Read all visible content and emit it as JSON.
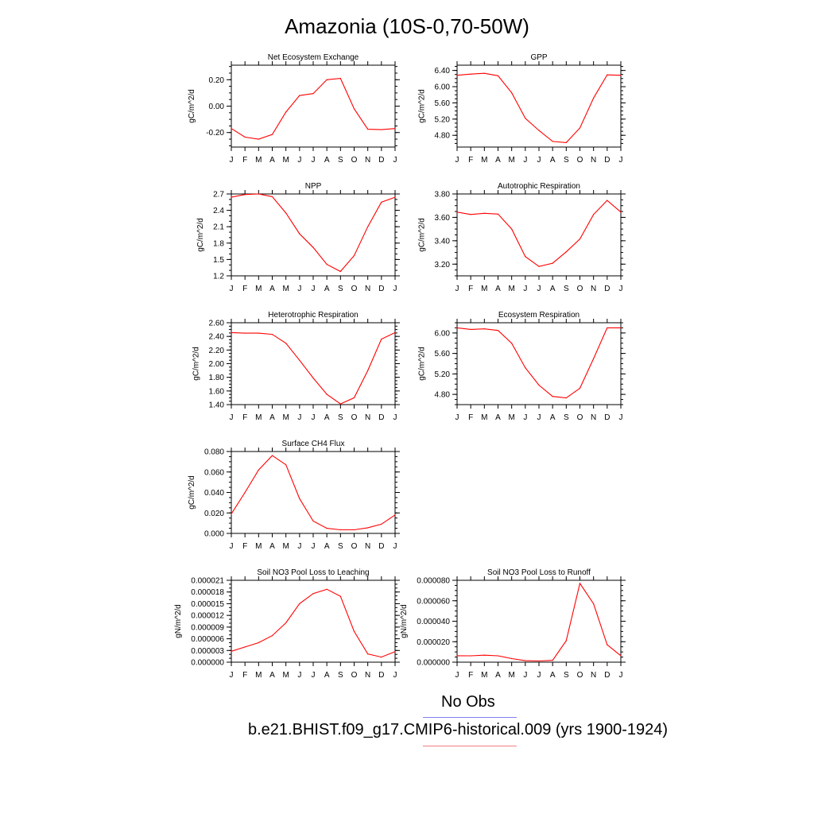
{
  "title": "Amazonia (10S-0,70-50W)",
  "legend": [
    {
      "label": "No Obs",
      "color": "#8080f0"
    },
    {
      "label": "b.e21.BHIST.f09_g17.CMIP6-historical.009 (yrs 1900-1924)",
      "color": "#f08080"
    }
  ],
  "series_color": "#ff0000",
  "chart_data": [
    {
      "type": "line",
      "title": "Net Ecosystem Exchange",
      "ylabel": "gC/m^2/d",
      "x": [
        "J",
        "F",
        "M",
        "A",
        "M",
        "J",
        "J",
        "A",
        "S",
        "O",
        "N",
        "D",
        "J"
      ],
      "values": [
        -0.17,
        -0.235,
        -0.25,
        -0.215,
        -0.045,
        0.08,
        0.095,
        0.2,
        0.21,
        -0.02,
        -0.175,
        -0.178,
        -0.17
      ],
      "ylim": [
        -0.31,
        0.31
      ],
      "yticks": [
        -0.2,
        0.0,
        0.2
      ],
      "ytick_labels": [
        "-0.20",
        "0.00",
        "0.20"
      ],
      "minor_step": 0.05
    },
    {
      "type": "line",
      "title": "GPP",
      "ylabel": "gC/m^2/d",
      "x": [
        "J",
        "F",
        "M",
        "A",
        "M",
        "J",
        "J",
        "A",
        "S",
        "O",
        "N",
        "D",
        "J"
      ],
      "values": [
        6.28,
        6.31,
        6.33,
        6.27,
        5.85,
        5.22,
        4.92,
        4.65,
        4.62,
        4.98,
        5.72,
        6.29,
        6.28
      ],
      "ylim": [
        4.51,
        6.53
      ],
      "yticks": [
        4.8,
        5.2,
        5.6,
        6.0,
        6.4
      ],
      "ytick_labels": [
        "4.80",
        "5.20",
        "5.60",
        "6.00",
        "6.40"
      ],
      "minor_step": 0.1
    },
    {
      "type": "line",
      "title": "NPP",
      "ylabel": "gC/m^2/d",
      "x": [
        "J",
        "F",
        "M",
        "A",
        "M",
        "J",
        "J",
        "A",
        "S",
        "O",
        "N",
        "D",
        "J"
      ],
      "values": [
        2.64,
        2.69,
        2.7,
        2.65,
        2.35,
        1.97,
        1.72,
        1.41,
        1.28,
        1.57,
        2.1,
        2.55,
        2.64
      ],
      "ylim": [
        1.2,
        2.7
      ],
      "yticks": [
        1.2,
        1.5,
        1.8,
        2.1,
        2.4,
        2.7
      ],
      "ytick_labels": [
        "1.2",
        "1.5",
        "1.8",
        "2.1",
        "2.4",
        "2.7"
      ],
      "minor_step": 0.1
    },
    {
      "type": "line",
      "title": "Autotrophic Respiration",
      "ylabel": "gC/m^2/d",
      "x": [
        "J",
        "F",
        "M",
        "A",
        "M",
        "J",
        "J",
        "A",
        "S",
        "O",
        "N",
        "D",
        "J"
      ],
      "values": [
        3.645,
        3.625,
        3.635,
        3.628,
        3.5,
        3.265,
        3.18,
        3.208,
        3.305,
        3.415,
        3.625,
        3.745,
        3.645
      ],
      "ylim": [
        3.1,
        3.8
      ],
      "yticks": [
        3.2,
        3.4,
        3.6,
        3.8
      ],
      "ytick_labels": [
        "3.20",
        "3.40",
        "3.60",
        "3.80"
      ],
      "minor_step": 0.05
    },
    {
      "type": "line",
      "title": "Heterotrophic Respiration",
      "ylabel": "gC/m^2/d",
      "x": [
        "J",
        "F",
        "M",
        "A",
        "M",
        "J",
        "J",
        "A",
        "S",
        "O",
        "N",
        "D",
        "J"
      ],
      "values": [
        2.455,
        2.447,
        2.447,
        2.43,
        2.3,
        2.05,
        1.79,
        1.55,
        1.41,
        1.5,
        1.9,
        2.36,
        2.455
      ],
      "ylim": [
        1.4,
        2.6
      ],
      "yticks": [
        1.4,
        1.6,
        1.8,
        2.0,
        2.2,
        2.4,
        2.6
      ],
      "ytick_labels": [
        "1.40",
        "1.60",
        "1.80",
        "2.00",
        "2.20",
        "2.40",
        "2.60"
      ],
      "minor_step": 0.05
    },
    {
      "type": "line",
      "title": "Ecosystem Respiration",
      "ylabel": "gC/m^2/d",
      "x": [
        "J",
        "F",
        "M",
        "A",
        "M",
        "J",
        "J",
        "A",
        "S",
        "O",
        "N",
        "D",
        "J"
      ],
      "values": [
        6.1,
        6.07,
        6.08,
        6.05,
        5.8,
        5.32,
        4.98,
        4.76,
        4.73,
        4.92,
        5.5,
        6.1,
        6.1
      ],
      "ylim": [
        4.6,
        6.2
      ],
      "yticks": [
        4.8,
        5.2,
        5.6,
        6.0
      ],
      "ytick_labels": [
        "4.80",
        "5.20",
        "5.60",
        "6.00"
      ],
      "minor_step": 0.1
    },
    {
      "type": "line",
      "title": "Surface CH4 Flux",
      "ylabel": "gC/m^2/d",
      "x": [
        "J",
        "F",
        "M",
        "A",
        "M",
        "J",
        "J",
        "A",
        "S",
        "O",
        "N",
        "D",
        "J"
      ],
      "values": [
        0.019,
        0.04,
        0.062,
        0.076,
        0.067,
        0.034,
        0.012,
        0.005,
        0.0035,
        0.0035,
        0.0055,
        0.009,
        0.018
      ],
      "ylim": [
        0.0,
        0.08
      ],
      "yticks": [
        0.0,
        0.02,
        0.04,
        0.06,
        0.08
      ],
      "ytick_labels": [
        "0.000",
        "0.020",
        "0.040",
        "0.060",
        "0.080"
      ],
      "minor_step": 0.005
    },
    {
      "type": "line",
      "title": "Soil NO3 Pool Loss to Leaching",
      "ylabel": "gN/m^2/d",
      "x": [
        "J",
        "F",
        "M",
        "A",
        "M",
        "J",
        "J",
        "A",
        "S",
        "O",
        "N",
        "D",
        "J"
      ],
      "values": [
        2.8e-06,
        3.9e-06,
        5e-06,
        6.8e-06,
        1.01e-05,
        1.5e-05,
        1.76e-05,
        1.87e-05,
        1.69e-05,
        7.9e-06,
        2.1e-06,
        1.3e-06,
        2.7e-06
      ],
      "ylim": [
        0.0,
        2.1e-05
      ],
      "yticks": [
        0.0,
        3e-06,
        6e-06,
        9e-06,
        1.2e-05,
        1.5e-05,
        1.8e-05,
        2.1e-05
      ],
      "ytick_labels": [
        "0.000000",
        "0.000003",
        "0.000006",
        "0.000009",
        "0.000012",
        "0.000015",
        "0.000018",
        "0.000021"
      ],
      "minor_step": 1e-06
    },
    {
      "type": "line",
      "title": "Soil NO3 Pool Loss to Runoff",
      "ylabel": "gN/m^2/d",
      "x": [
        "J",
        "F",
        "M",
        "A",
        "M",
        "J",
        "J",
        "A",
        "S",
        "O",
        "N",
        "D",
        "J"
      ],
      "values": [
        6.3e-06,
        6.2e-06,
        6.8e-06,
        6.2e-06,
        3.5e-06,
        1.5e-06,
        1.2e-06,
        1.8e-06,
        2.1e-05,
        7.7e-05,
        5.7e-05,
        1.7e-05,
        6.3e-06
      ],
      "ylim": [
        0.0,
        8e-05
      ],
      "yticks": [
        0.0,
        2e-05,
        4e-05,
        6e-05,
        8e-05
      ],
      "ytick_labels": [
        "0.000000",
        "0.000020",
        "0.000040",
        "0.000060",
        "0.000080"
      ],
      "minor_step": 5e-06
    }
  ]
}
